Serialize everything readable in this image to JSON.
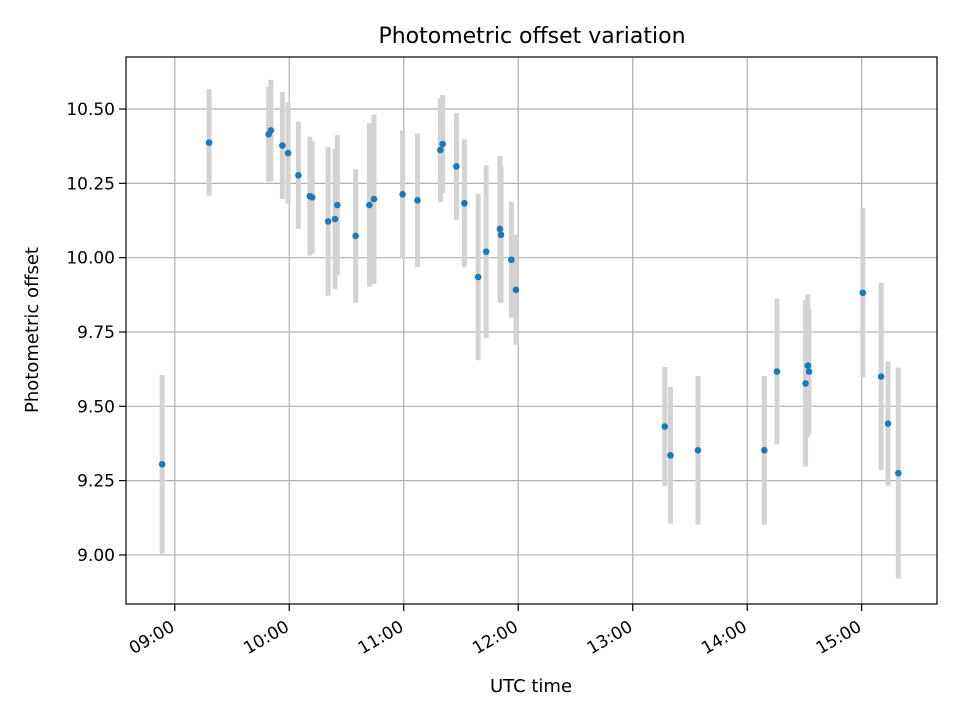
{
  "chart_data": {
    "type": "scatter",
    "title": "Photometric offset variation",
    "xlabel": "UTC time",
    "ylabel": "Photometric offset",
    "grid": true,
    "x_unit": "hours (UTC)",
    "xlim": [
      8.574,
      15.658
    ],
    "ylim": [
      8.835,
      10.675
    ],
    "x_ticks": [
      9,
      10,
      11,
      12,
      13,
      14,
      15
    ],
    "x_tick_labels": [
      "09:00",
      "10:00",
      "11:00",
      "12:00",
      "13:00",
      "14:00",
      "15:00"
    ],
    "y_ticks": [
      9.0,
      9.25,
      9.5,
      9.75,
      10.0,
      10.25,
      10.5
    ],
    "y_tick_labels": [
      "9.00",
      "9.25",
      "9.50",
      "9.75",
      "10.00",
      "10.25",
      "10.50"
    ],
    "colors": {
      "point": "#1f77b4",
      "errorbar": "#d3d3d3",
      "grid": "#b0b0b0",
      "axis": "#000000"
    },
    "series": [
      {
        "name": "offset",
        "points": [
          {
            "x": 8.89,
            "y": 9.305,
            "err": 0.3
          },
          {
            "x": 9.3,
            "y": 10.387,
            "err": 0.18
          },
          {
            "x": 9.82,
            "y": 10.415,
            "err": 0.16
          },
          {
            "x": 9.84,
            "y": 10.428,
            "err": 0.17
          },
          {
            "x": 9.94,
            "y": 10.377,
            "err": 0.18
          },
          {
            "x": 9.99,
            "y": 10.352,
            "err": 0.17
          },
          {
            "x": 10.08,
            "y": 10.277,
            "err": 0.18
          },
          {
            "x": 10.18,
            "y": 10.207,
            "err": 0.2
          },
          {
            "x": 10.2,
            "y": 10.203,
            "err": 0.19
          },
          {
            "x": 10.34,
            "y": 10.122,
            "err": 0.25
          },
          {
            "x": 10.4,
            "y": 10.13,
            "err": 0.235
          },
          {
            "x": 10.42,
            "y": 10.177,
            "err": 0.235
          },
          {
            "x": 10.58,
            "y": 10.073,
            "err": 0.225
          },
          {
            "x": 10.7,
            "y": 10.177,
            "err": 0.275
          },
          {
            "x": 10.74,
            "y": 10.197,
            "err": 0.285
          },
          {
            "x": 10.99,
            "y": 10.213,
            "err": 0.215
          },
          {
            "x": 11.12,
            "y": 10.193,
            "err": 0.225
          },
          {
            "x": 11.32,
            "y": 10.362,
            "err": 0.175
          },
          {
            "x": 11.34,
            "y": 10.382,
            "err": 0.165
          },
          {
            "x": 11.46,
            "y": 10.307,
            "err": 0.18
          },
          {
            "x": 11.53,
            "y": 10.183,
            "err": 0.215
          },
          {
            "x": 11.65,
            "y": 9.935,
            "err": 0.28
          },
          {
            "x": 11.72,
            "y": 10.02,
            "err": 0.29
          },
          {
            "x": 11.84,
            "y": 10.097,
            "err": 0.245
          },
          {
            "x": 11.85,
            "y": 10.077,
            "err": 0.23
          },
          {
            "x": 11.94,
            "y": 9.993,
            "err": 0.195
          },
          {
            "x": 11.98,
            "y": 9.892,
            "err": 0.185
          },
          {
            "x": 13.28,
            "y": 9.432,
            "err": 0.2
          },
          {
            "x": 13.33,
            "y": 9.335,
            "err": 0.23
          },
          {
            "x": 13.57,
            "y": 9.352,
            "err": 0.25
          },
          {
            "x": 14.15,
            "y": 9.352,
            "err": 0.25
          },
          {
            "x": 14.26,
            "y": 9.617,
            "err": 0.245
          },
          {
            "x": 14.51,
            "y": 9.577,
            "err": 0.28
          },
          {
            "x": 14.53,
            "y": 9.637,
            "err": 0.24
          },
          {
            "x": 14.54,
            "y": 9.617,
            "err": 0.21
          },
          {
            "x": 15.01,
            "y": 9.882,
            "err": 0.285
          },
          {
            "x": 15.17,
            "y": 9.6,
            "err": 0.315
          },
          {
            "x": 15.23,
            "y": 9.442,
            "err": 0.21
          },
          {
            "x": 15.32,
            "y": 9.275,
            "err": 0.355
          }
        ]
      }
    ]
  }
}
